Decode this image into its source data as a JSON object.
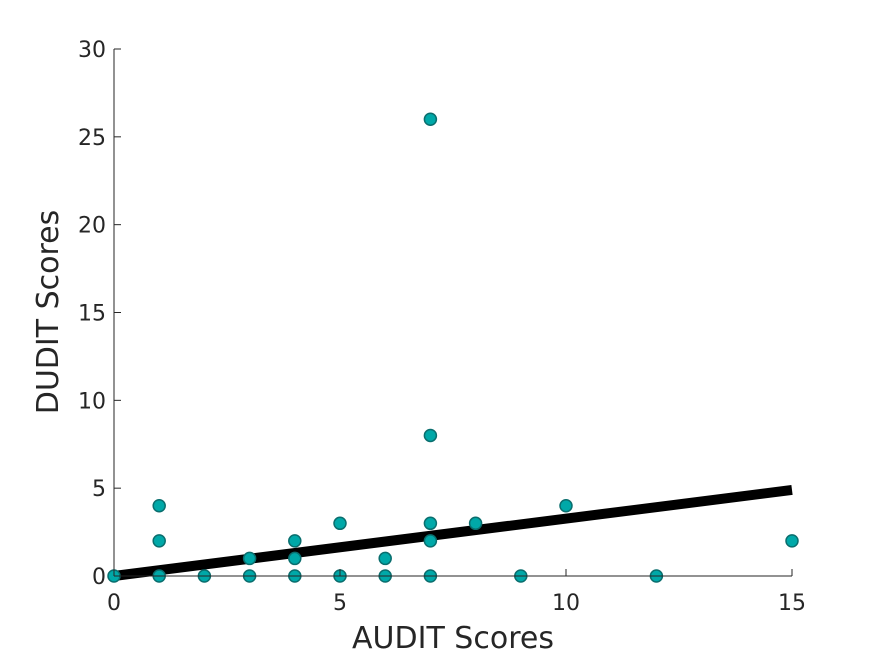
{
  "chart_data": {
    "type": "scatter",
    "xlabel": "AUDIT Scores",
    "ylabel": "DUDIT Scores",
    "xlim": [
      0,
      15
    ],
    "ylim": [
      0,
      30
    ],
    "x_ticks": [
      0,
      5,
      10,
      15
    ],
    "y_ticks": [
      0,
      5,
      10,
      15,
      20,
      25,
      30
    ],
    "x_tick_labels": [
      "0",
      "5",
      "10",
      "15"
    ],
    "y_tick_labels": [
      "0",
      "5",
      "10",
      "15",
      "20",
      "25",
      "30"
    ],
    "grid": false,
    "marker_color": "#00a8a8",
    "fit_line_color": "#000000",
    "points": [
      {
        "x": 0,
        "y": 0
      },
      {
        "x": 1,
        "y": 4
      },
      {
        "x": 1,
        "y": 2
      },
      {
        "x": 1,
        "y": 0
      },
      {
        "x": 2,
        "y": 0
      },
      {
        "x": 3,
        "y": 1
      },
      {
        "x": 3,
        "y": 0
      },
      {
        "x": 4,
        "y": 2
      },
      {
        "x": 4,
        "y": 1
      },
      {
        "x": 4,
        "y": 0
      },
      {
        "x": 5,
        "y": 3
      },
      {
        "x": 5,
        "y": 0
      },
      {
        "x": 6,
        "y": 1
      },
      {
        "x": 6,
        "y": 0
      },
      {
        "x": 7,
        "y": 26
      },
      {
        "x": 7,
        "y": 8
      },
      {
        "x": 7,
        "y": 3
      },
      {
        "x": 7,
        "y": 2
      },
      {
        "x": 7,
        "y": 0
      },
      {
        "x": 8,
        "y": 3
      },
      {
        "x": 9,
        "y": 0
      },
      {
        "x": 10,
        "y": 4
      },
      {
        "x": 12,
        "y": 0
      },
      {
        "x": 15,
        "y": 2
      }
    ],
    "fit_line": {
      "x": [
        0,
        15
      ],
      "y": [
        0,
        4.9
      ]
    }
  }
}
